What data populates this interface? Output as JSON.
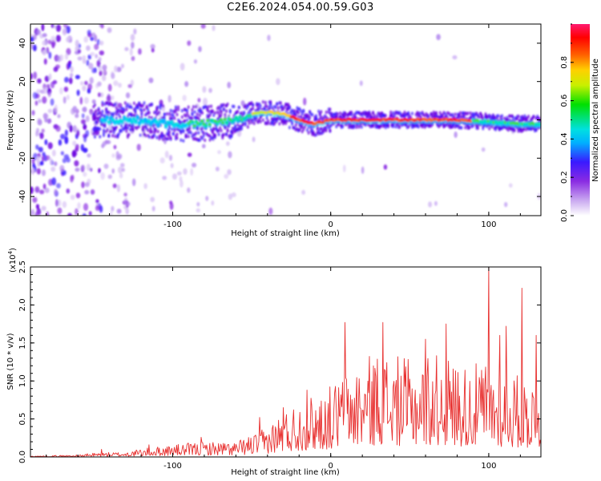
{
  "title": "C2E6.2024.054.00.59.G03",
  "colors": {
    "line": "#e8302f",
    "spectrogram_low": "#a070f0",
    "spectrogram_mid": "#8a2be2",
    "ridge": "#ff0000"
  },
  "chart_data": [
    {
      "type": "heatmap",
      "xlabel": "Height of straight line (km)",
      "ylabel": "Frequency (Hz)",
      "xlim": [
        -190,
        133
      ],
      "ylim": [
        -50,
        50
      ],
      "xticks": [
        -100,
        0,
        100
      ],
      "yticks": [
        -40,
        -20,
        0,
        20,
        40
      ],
      "colorbar": {
        "label": "Normalized spectral amplitude",
        "range": [
          0.0,
          1.0
        ],
        "ticks": [
          0.0,
          0.2,
          0.4,
          0.6,
          0.8
        ]
      },
      "ridge": {
        "x": [
          -140,
          -120,
          -100,
          -80,
          -60,
          -50,
          -40,
          -30,
          -20,
          -10,
          0,
          10,
          20,
          40,
          60,
          80,
          100,
          120,
          133
        ],
        "y": [
          0,
          0,
          -2,
          -2,
          0,
          3,
          4,
          3,
          0,
          -2,
          0,
          0,
          0,
          0,
          0,
          0,
          -1,
          -2,
          -2
        ]
      }
    },
    {
      "type": "line",
      "xlabel": "Height of straight line (km)",
      "ylabel": "SNR (10 * v/v)",
      "y_multiplier": "(x10",
      "y_multiplier_exp": "4",
      "y_multiplier_close": ")",
      "xlim": [
        -190,
        133
      ],
      "ylim": [
        0,
        2.5
      ],
      "xticks": [
        -100,
        0,
        100
      ],
      "yticks": [
        0.0,
        0.5,
        1.0,
        1.5,
        2.0,
        2.5
      ],
      "x_start": -190,
      "x_step": 0.5,
      "envelope": {
        "x": [
          -190,
          -160,
          -150,
          -130,
          -120,
          -100,
          -80,
          -60,
          -50,
          -40,
          -30,
          -20,
          -10,
          0,
          10,
          20,
          30,
          40,
          50,
          60,
          70,
          80,
          90,
          100,
          110,
          120,
          133
        ],
        "y": [
          0.01,
          0.02,
          0.04,
          0.05,
          0.08,
          0.12,
          0.15,
          0.15,
          0.22,
          0.3,
          0.45,
          0.55,
          0.62,
          0.7,
          0.85,
          0.95,
          1.05,
          1.0,
          0.95,
          1.05,
          1.0,
          0.95,
          0.9,
          0.95,
          0.85,
          0.8,
          0.75
        ]
      },
      "peaks": [
        {
          "x": -145,
          "y": 0.1
        },
        {
          "x": -115,
          "y": 0.16
        },
        {
          "x": -82,
          "y": 0.26
        },
        {
          "x": -45,
          "y": 0.52
        },
        {
          "x": -30,
          "y": 0.65
        },
        {
          "x": -15,
          "y": 0.88
        },
        {
          "x": 9,
          "y": 1.77
        },
        {
          "x": 33,
          "y": 1.77
        },
        {
          "x": 60,
          "y": 1.55
        },
        {
          "x": 73,
          "y": 1.75
        },
        {
          "x": 100,
          "y": 2.52
        },
        {
          "x": 107,
          "y": 1.6
        },
        {
          "x": 111,
          "y": 1.72
        },
        {
          "x": 121,
          "y": 2.22
        },
        {
          "x": 130,
          "y": 1.6
        }
      ]
    }
  ]
}
